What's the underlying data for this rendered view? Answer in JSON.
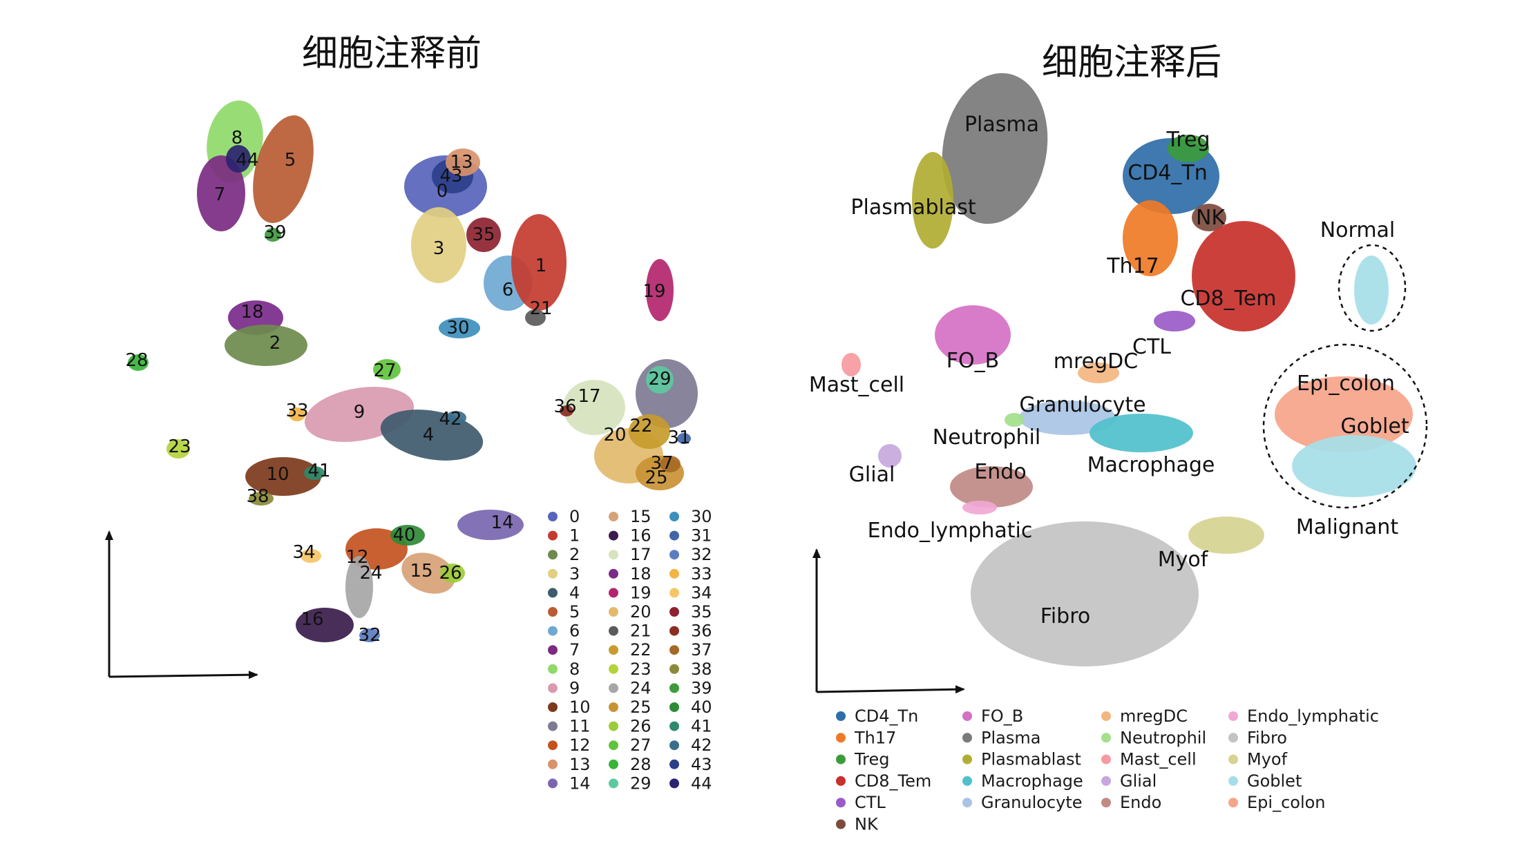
{
  "titles": {
    "left": "细胞注释前",
    "right": "细胞注释后"
  },
  "colors": {
    "0": "#5864bb",
    "1": "#c43b2f",
    "2": "#6e8b4d",
    "3": "#e2cf82",
    "4": "#3e5a6e",
    "5": "#b85c33",
    "6": "#6fa8d2",
    "7": "#7b2b82",
    "8": "#8fd96a",
    "9": "#d99ab0",
    "10": "#7d3a1b",
    "11": "#7d7a93",
    "12": "#c4521f",
    "13": "#d8936b",
    "14": "#7a66b0",
    "15": "#d7a277",
    "16": "#3a1c4c",
    "17": "#d6e3bd",
    "18": "#7a2a8a",
    "19": "#b3266d",
    "20": "#e2ba6c",
    "21": "#5b5b5b",
    "22": "#c79b2d",
    "23": "#b4d33b",
    "24": "#a6a6a6",
    "25": "#c99335",
    "26": "#9ccc3a",
    "27": "#5fc43c",
    "28": "#37b43a",
    "29": "#5dc9a0",
    "30": "#3d8fbc",
    "31": "#4265a8",
    "32": "#5a7cc0",
    "33": "#f2b446",
    "34": "#f4c667",
    "35": "#8e2231",
    "36": "#8c2c23",
    "37": "#a56a26",
    "38": "#8a8a3a",
    "39": "#3e9a3c",
    "40": "#2e8a35",
    "41": "#2f8a6a",
    "42": "#3c6e8a",
    "43": "#2c3f8a",
    "44": "#2b2370",
    "CD4_Tn": "#2f6ea8",
    "Th17": "#ef7a26",
    "Treg": "#3b9b3b",
    "CD8_Tem": "#c8302b",
    "CTL": "#9a5bc8",
    "NK": "#7d4b3e",
    "FO_B": "#d571c4",
    "Plasma": "#7a7a7a",
    "Plasmablast": "#b1ad33",
    "Macrophage": "#4fc0cb",
    "Granulocyte": "#a9c4e4",
    "mregDC": "#f4b681",
    "Neutrophil": "#a2e08a",
    "Mast_cell": "#f59aa0",
    "Glial": "#c6a8dc",
    "Endo": "#c08a85",
    "Endo_lymphatic": "#f0a8d4",
    "Fibro": "#c3c3c3",
    "Myof": "#d6d291",
    "Goblet": "#a6dee8",
    "Epi_colon": "#f6a48a"
  },
  "chart_data": [
    {
      "type": "scatter",
      "title": "细胞注释前",
      "xlabel": "",
      "ylabel": "",
      "grid": false,
      "legend": "bottom-right",
      "series": [
        {
          "name": "0"
        },
        {
          "name": "1"
        },
        {
          "name": "2"
        },
        {
          "name": "3"
        },
        {
          "name": "4"
        },
        {
          "name": "5"
        },
        {
          "name": "6"
        },
        {
          "name": "7"
        },
        {
          "name": "8"
        },
        {
          "name": "9"
        },
        {
          "name": "10"
        },
        {
          "name": "11"
        },
        {
          "name": "12"
        },
        {
          "name": "13"
        },
        {
          "name": "14"
        },
        {
          "name": "15"
        },
        {
          "name": "16"
        },
        {
          "name": "17"
        },
        {
          "name": "18"
        },
        {
          "name": "19"
        },
        {
          "name": "20"
        },
        {
          "name": "21"
        },
        {
          "name": "22"
        },
        {
          "name": "23"
        },
        {
          "name": "24"
        },
        {
          "name": "25"
        },
        {
          "name": "26"
        },
        {
          "name": "27"
        },
        {
          "name": "28"
        },
        {
          "name": "29"
        },
        {
          "name": "30"
        },
        {
          "name": "31"
        },
        {
          "name": "32"
        },
        {
          "name": "33"
        },
        {
          "name": "34"
        },
        {
          "name": "35"
        },
        {
          "name": "36"
        },
        {
          "name": "37"
        },
        {
          "name": "38"
        },
        {
          "name": "39"
        },
        {
          "name": "40"
        },
        {
          "name": "41"
        },
        {
          "name": "42"
        },
        {
          "name": "43"
        },
        {
          "name": "44"
        }
      ]
    },
    {
      "type": "scatter",
      "title": "细胞注释后",
      "xlabel": "",
      "ylabel": "",
      "grid": false,
      "legend": "bottom",
      "series": [
        {
          "name": "CD4_Tn"
        },
        {
          "name": "Th17"
        },
        {
          "name": "Treg"
        },
        {
          "name": "CD8_Tem"
        },
        {
          "name": "CTL"
        },
        {
          "name": "NK"
        },
        {
          "name": "FO_B"
        },
        {
          "name": "Plasma"
        },
        {
          "name": "Plasmablast"
        },
        {
          "name": "Macrophage"
        },
        {
          "name": "Granulocyte"
        },
        {
          "name": "mregDC"
        },
        {
          "name": "Neutrophil"
        },
        {
          "name": "Mast_cell"
        },
        {
          "name": "Glial"
        },
        {
          "name": "Endo"
        },
        {
          "name": "Endo_lymphatic"
        },
        {
          "name": "Fibro"
        },
        {
          "name": "Myof"
        },
        {
          "name": "Goblet"
        },
        {
          "name": "Epi_colon"
        }
      ],
      "annotations": [
        "Normal",
        "Malignant"
      ]
    }
  ],
  "right_labels": {
    "Plasma": "Plasma",
    "Plasmablast": "Plasmablast",
    "Treg": "Treg",
    "CD4_Tn": "CD4_Tn",
    "NK": "NK",
    "Th17": "Th17",
    "CD8_Tem": "CD8_Tem",
    "CTL": "CTL",
    "FO_B": "FO_B",
    "mregDC": "mregDC",
    "Mast_cell": "Mast_cell",
    "Granulocyte": "Granulocyte",
    "Neutrophil": "Neutrophil",
    "Macrophage": "Macrophage",
    "Glial": "Glial",
    "Endo": "Endo",
    "Endo_lymphatic": "Endo_lymphatic",
    "Myof": "Myof",
    "Fibro": "Fibro",
    "Normal": "Normal",
    "Epi_colon": "Epi_colon",
    "Goblet": "Goblet",
    "Malignant": "Malignant"
  }
}
